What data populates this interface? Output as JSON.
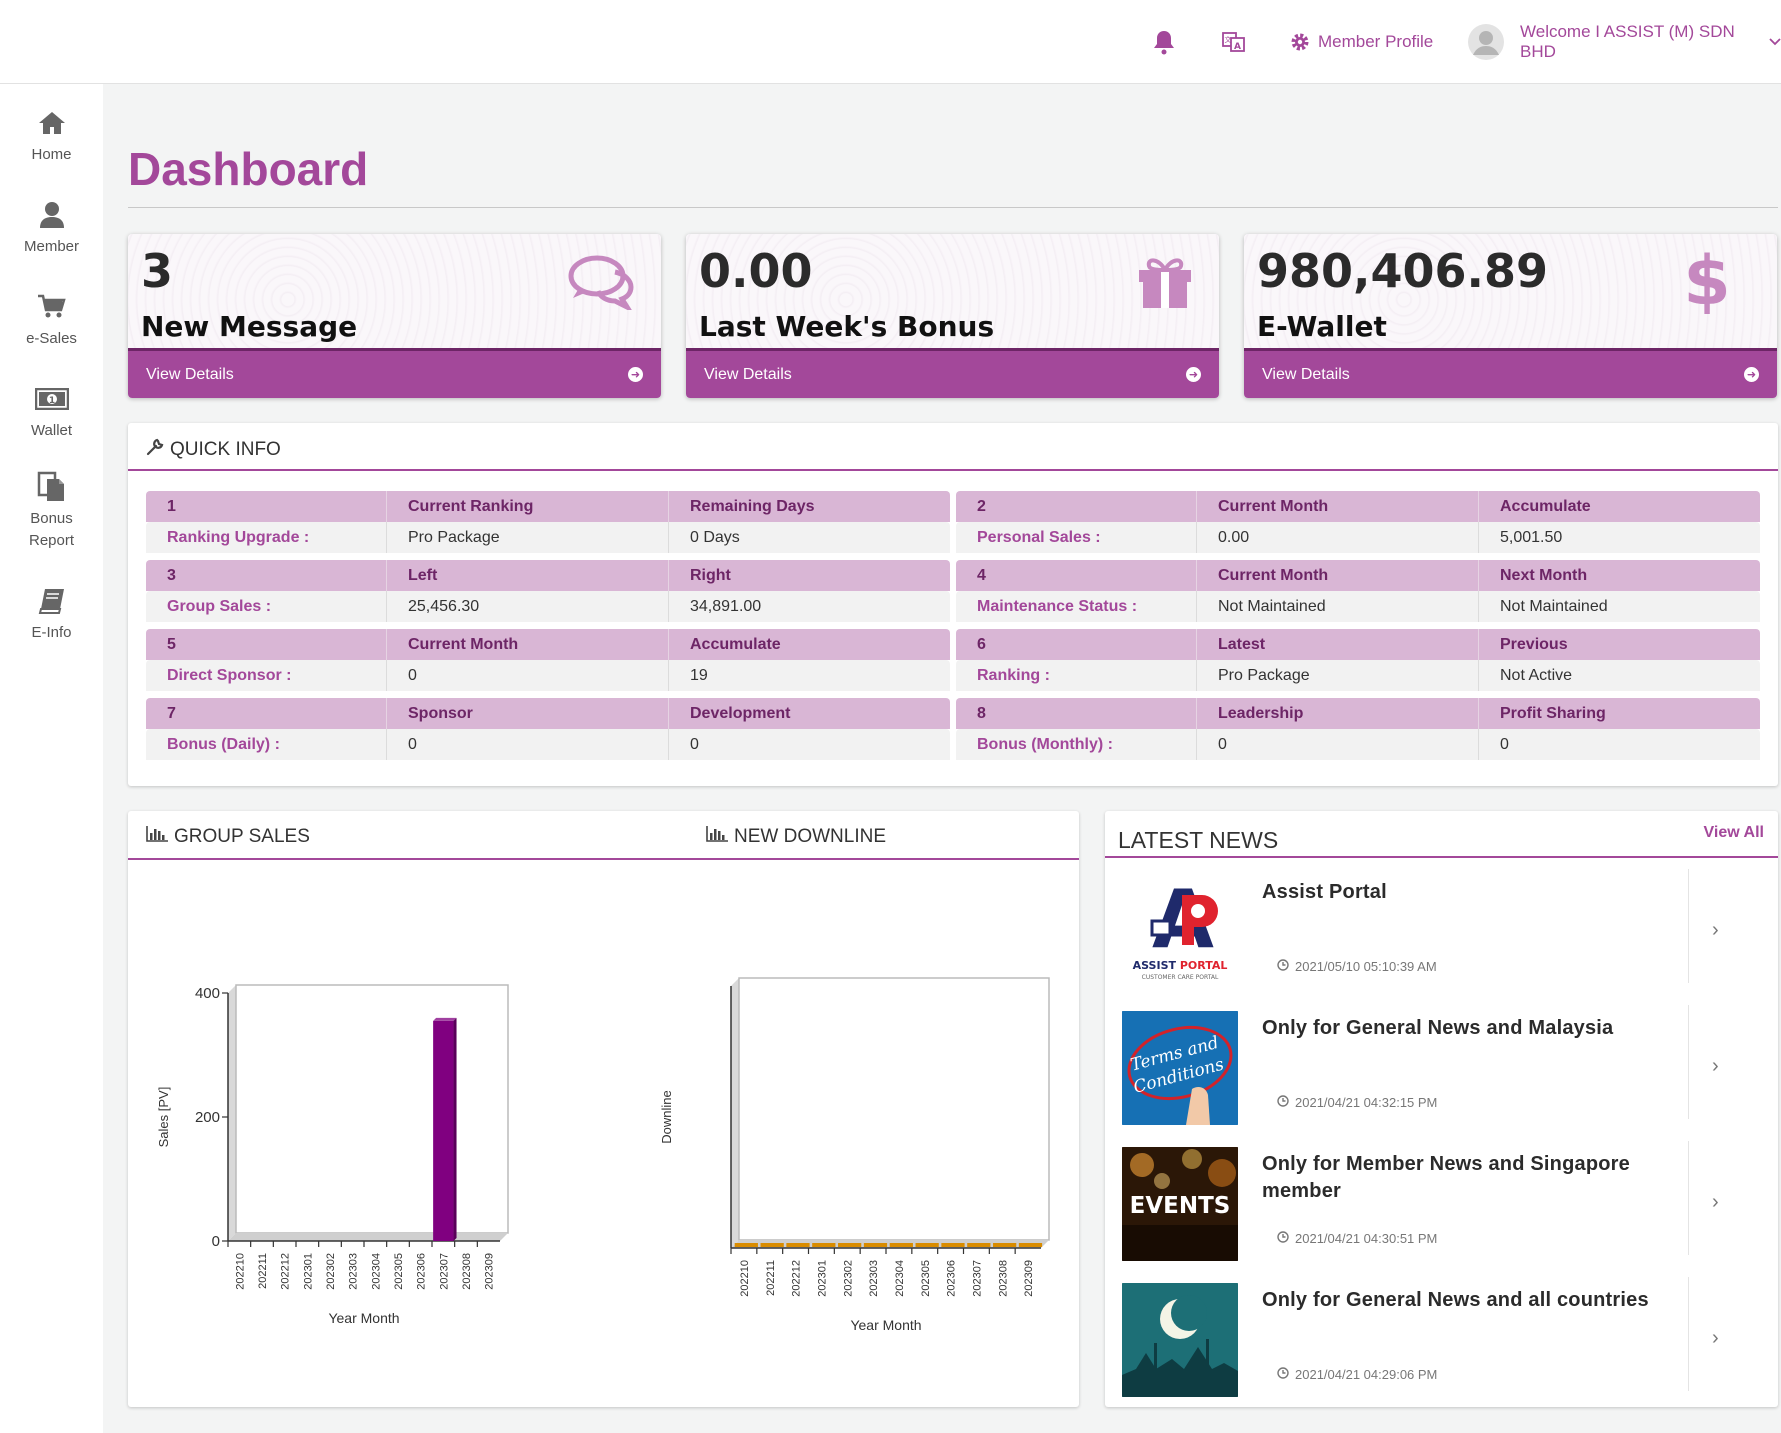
{
  "topbar": {
    "bell_icon": "bell-icon",
    "language_icon": "translate-icon",
    "profile_label": "Member Profile",
    "welcome": "Welcome I ASSIST (M) SDN BHD"
  },
  "sidebar": {
    "items": [
      {
        "label": "Home",
        "icon": "home-icon"
      },
      {
        "label": "Member",
        "icon": "user-icon"
      },
      {
        "label": "e-Sales",
        "icon": "cart-icon"
      },
      {
        "label": "Wallet",
        "icon": "money-icon"
      },
      {
        "label": "Bonus",
        "label2": "Report",
        "icon": "report-icon"
      },
      {
        "label": "E-Info",
        "icon": "book-icon"
      }
    ]
  },
  "page": {
    "title": "Dashboard"
  },
  "cards": [
    {
      "value": "3",
      "label": "New Message",
      "link": "View Details",
      "icon": "chat-icon"
    },
    {
      "value": "0.00",
      "label": "Last Week's Bonus",
      "link": "View Details",
      "icon": "gift-icon"
    },
    {
      "value": "980,406.89",
      "label": "E-Wallet",
      "link": "View Details",
      "icon": "dollar-icon"
    }
  ],
  "quick_info": {
    "title": "QUICK INFO",
    "rows": [
      {
        "h": [
          "1",
          "Current Ranking",
          "Remaining Days"
        ],
        "v": [
          "Ranking Upgrade :",
          "Pro Package",
          "0 Days"
        ]
      },
      {
        "h": [
          "2",
          "Current Month",
          "Accumulate"
        ],
        "v": [
          "Personal Sales :",
          "0.00",
          "5,001.50"
        ]
      },
      {
        "h": [
          "3",
          "Left",
          "Right"
        ],
        "v": [
          "Group Sales :",
          "25,456.30",
          "34,891.00"
        ]
      },
      {
        "h": [
          "4",
          "Current Month",
          "Next Month"
        ],
        "v": [
          "Maintenance Status :",
          "Not Maintained",
          "Not Maintained"
        ]
      },
      {
        "h": [
          "5",
          "Current Month",
          "Accumulate"
        ],
        "v": [
          "Direct Sponsor :",
          "0",
          "19"
        ]
      },
      {
        "h": [
          "6",
          "Latest",
          "Previous"
        ],
        "v": [
          "Ranking :",
          "Pro Package",
          "Not Active"
        ]
      },
      {
        "h": [
          "7",
          "Sponsor",
          "Development"
        ],
        "v": [
          "Bonus (Daily) :",
          "0",
          "0"
        ]
      },
      {
        "h": [
          "8",
          "Leadership",
          "Profit Sharing"
        ],
        "v": [
          "Bonus (Monthly) :",
          "0",
          "0"
        ]
      }
    ]
  },
  "charts_panel": {
    "group_sales_title": "GROUP SALES",
    "new_downline_title": "NEW DOWNLINE"
  },
  "chart_data": [
    {
      "type": "bar",
      "categories": [
        "202210",
        "202211",
        "202212",
        "202301",
        "202302",
        "202303",
        "202304",
        "202305",
        "202306",
        "202307",
        "202308",
        "202309"
      ],
      "values": [
        0,
        0,
        0,
        0,
        0,
        0,
        0,
        0,
        0,
        355,
        0,
        0
      ],
      "xlabel": "Year Month",
      "ylabel": "Sales [PV]",
      "ylim": [
        0,
        400
      ],
      "yticks": [
        "0",
        "200",
        "400"
      ],
      "color": "#800080"
    },
    {
      "type": "bar",
      "categories": [
        "202210",
        "202211",
        "202212",
        "202301",
        "202302",
        "202303",
        "202304",
        "202305",
        "202306",
        "202307",
        "202308",
        "202309"
      ],
      "values": [
        0,
        0,
        0,
        0,
        0,
        0,
        0,
        0,
        0,
        0,
        0,
        0
      ],
      "xlabel": "Year Month",
      "ylabel": "Downline",
      "color": "#d98c00"
    }
  ],
  "news": {
    "title": "LATEST NEWS",
    "view_all": "View All",
    "items": [
      {
        "title": "Assist Portal",
        "date": "2021/05/10 05:10:39 AM",
        "thumb_logo": "AP",
        "thumb_text": "ASSIST PORTAL",
        "thumb_sub": "CUSTOMER CARE PORTAL"
      },
      {
        "title": "Only for General News and Malaysia",
        "date": "2021/04/21 04:32:15 PM",
        "thumb_text": "Terms and Conditions"
      },
      {
        "title": "Only for Member News and Singapore member",
        "date": "2021/04/21 04:30:51 PM",
        "thumb_text": "EVENTS"
      },
      {
        "title": "Only for General News and all countries",
        "date": "2021/04/21 04:29:06 PM"
      }
    ]
  }
}
